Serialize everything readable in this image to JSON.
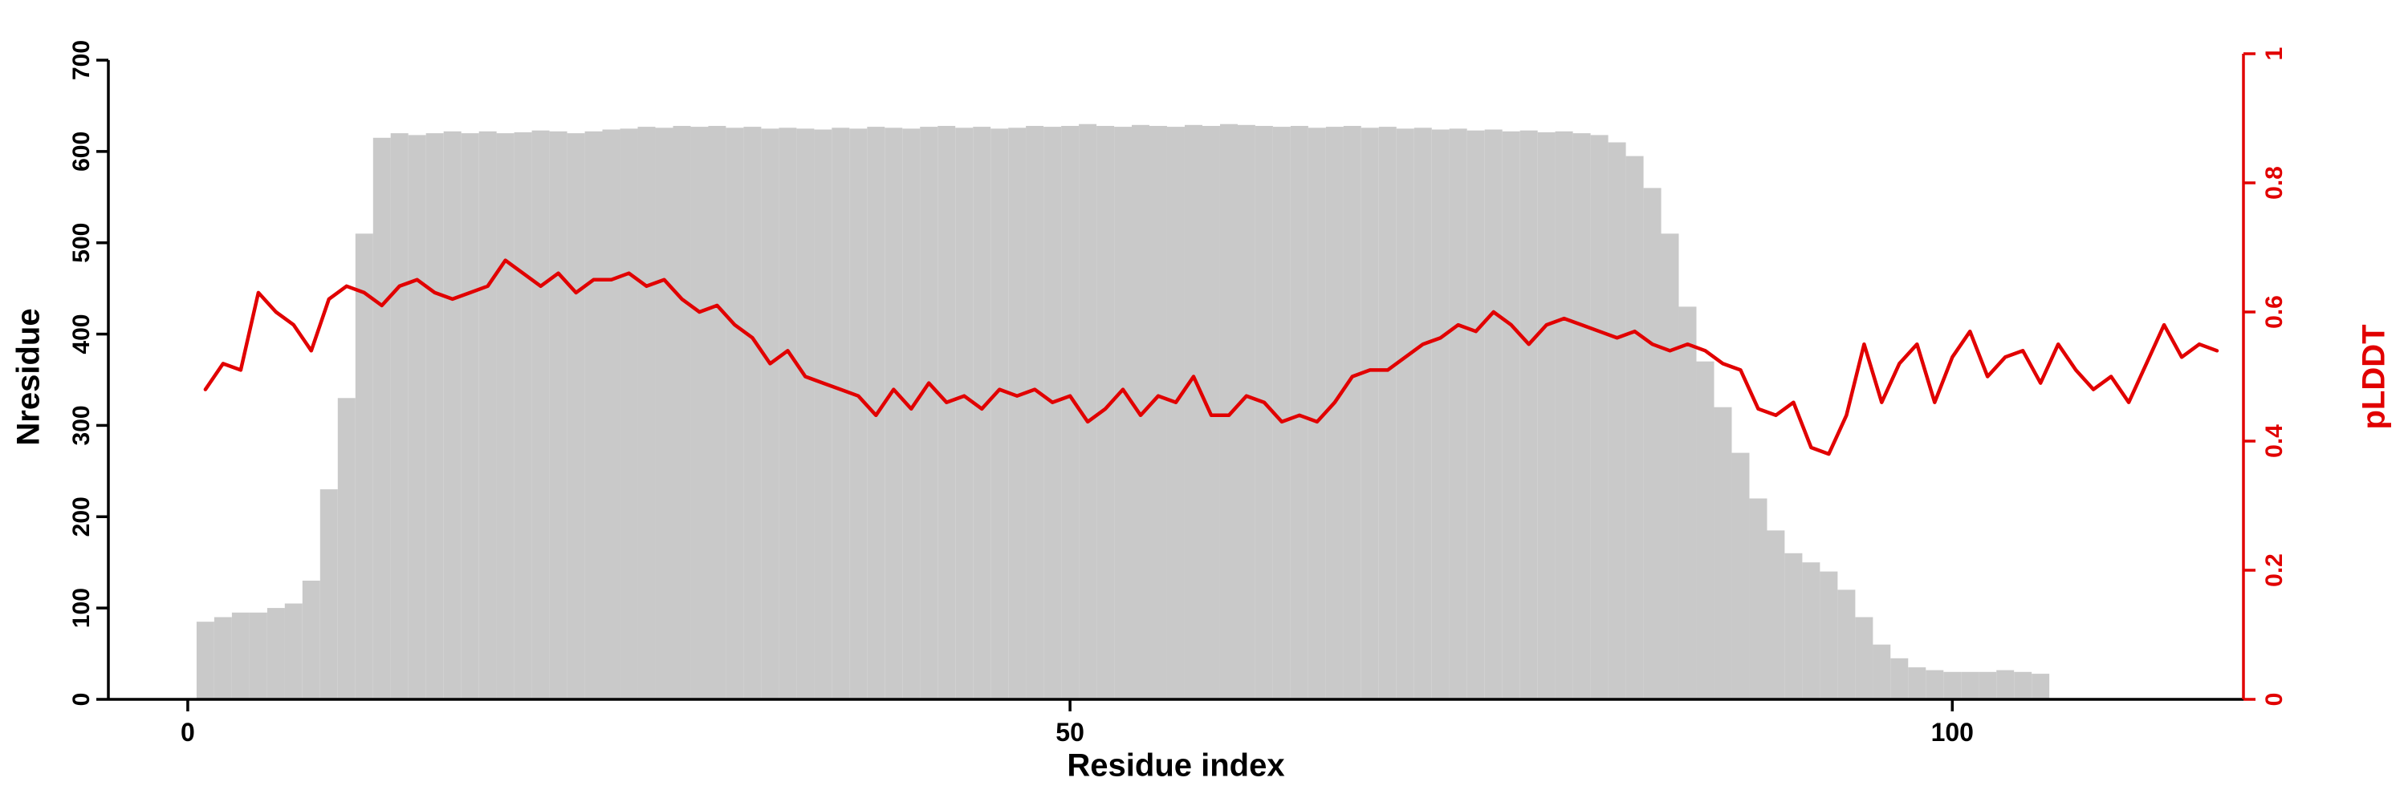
{
  "chart_data": {
    "type": "bar",
    "subtype": "bar-with-overlaid-line",
    "title": "",
    "xlabel": "Residue index",
    "ylabel_left": "Nresidue",
    "ylabel_right": "pLDDT",
    "x_start": 1,
    "xlim": [
      -4.5,
      116.5
    ],
    "y_left_max": 700,
    "y_right_max": 1,
    "x_ticks": [
      0,
      50,
      100
    ],
    "y_left_ticks": [
      0,
      100,
      200,
      300,
      400,
      500,
      600,
      700
    ],
    "y_right_ticks": [
      0,
      0.2,
      0.4,
      0.6,
      0.8,
      1
    ],
    "bar_color": "#c9c9c9",
    "line_color": "#e10000",
    "axis_color": "#000000",
    "grid": false,
    "legend_position": "none",
    "nresidue": [
      85,
      90,
      95,
      95,
      100,
      105,
      130,
      230,
      330,
      510,
      615,
      620,
      618,
      620,
      622,
      620,
      622,
      620,
      621,
      623,
      622,
      620,
      622,
      624,
      625,
      627,
      626,
      628,
      627,
      628,
      626,
      627,
      625,
      626,
      625,
      624,
      626,
      625,
      627,
      626,
      625,
      627,
      628,
      626,
      627,
      625,
      626,
      628,
      627,
      628,
      630,
      628,
      627,
      629,
      628,
      627,
      629,
      628,
      630,
      629,
      628,
      627,
      628,
      626,
      627,
      628,
      626,
      627,
      625,
      626,
      624,
      625,
      623,
      624,
      622,
      623,
      621,
      622,
      620,
      618,
      610,
      595,
      560,
      510,
      430,
      370,
      320,
      270,
      220,
      185,
      160,
      150,
      140,
      120,
      90,
      60,
      45,
      35,
      32,
      30,
      30,
      30,
      32,
      30,
      28,
      0,
      0,
      0,
      0,
      0,
      0,
      0,
      0,
      0,
      0
    ],
    "plddt": [
      0.48,
      0.52,
      0.51,
      0.63,
      0.6,
      0.58,
      0.54,
      0.62,
      0.64,
      0.63,
      0.61,
      0.64,
      0.65,
      0.63,
      0.62,
      0.63,
      0.64,
      0.68,
      0.66,
      0.64,
      0.66,
      0.63,
      0.65,
      0.65,
      0.66,
      0.64,
      0.65,
      0.62,
      0.6,
      0.61,
      0.58,
      0.56,
      0.52,
      0.54,
      0.5,
      0.49,
      0.48,
      0.47,
      0.44,
      0.48,
      0.45,
      0.49,
      0.46,
      0.47,
      0.45,
      0.48,
      0.47,
      0.48,
      0.46,
      0.47,
      0.43,
      0.45,
      0.48,
      0.44,
      0.47,
      0.46,
      0.5,
      0.44,
      0.44,
      0.47,
      0.46,
      0.43,
      0.44,
      0.43,
      0.46,
      0.5,
      0.51,
      0.51,
      0.53,
      0.55,
      0.56,
      0.58,
      0.57,
      0.6,
      0.58,
      0.55,
      0.58,
      0.59,
      0.58,
      0.57,
      0.56,
      0.57,
      0.55,
      0.54,
      0.55,
      0.54,
      0.52,
      0.51,
      0.45,
      0.44,
      0.46,
      0.39,
      0.38,
      0.44,
      0.55,
      0.46,
      0.52,
      0.55,
      0.46,
      0.53,
      0.57,
      0.5,
      0.53,
      0.54,
      0.49,
      0.55,
      0.51,
      0.48,
      0.5,
      0.46,
      0.52,
      0.58,
      0.53,
      0.55,
      0.54
    ]
  }
}
